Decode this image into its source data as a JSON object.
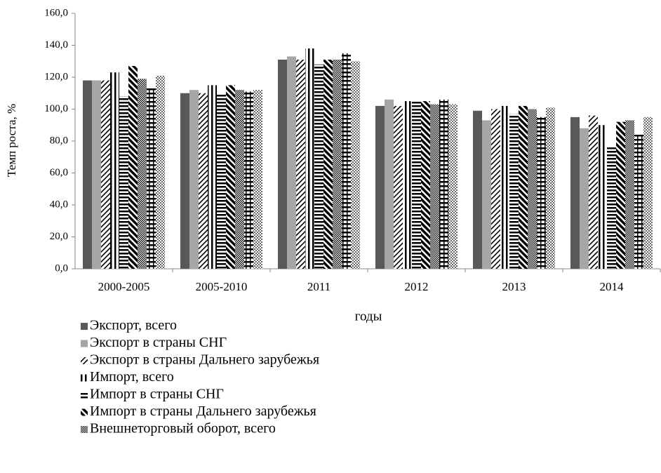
{
  "chart_data": {
    "type": "bar",
    "ylabel": "Темп роста, %",
    "xlabel": "годы",
    "categories": [
      "2000-2005",
      "2005-2010",
      "2011",
      "2012",
      "2013",
      "2014"
    ],
    "ylim": [
      0,
      160
    ],
    "yticks": [
      {
        "value": 0,
        "label": "0,0"
      },
      {
        "value": 20,
        "label": "20,0"
      },
      {
        "value": 40,
        "label": "40,0"
      },
      {
        "value": 60,
        "label": "60,0"
      },
      {
        "value": 80,
        "label": "80,0"
      },
      {
        "value": 100,
        "label": "100,0"
      },
      {
        "value": 120,
        "label": "120,0"
      },
      {
        "value": 140,
        "label": "140,0"
      },
      {
        "value": 160,
        "label": "160,0"
      }
    ],
    "grid": false,
    "series": [
      {
        "name": "Экспорт, всего",
        "color": "#595959",
        "pattern": "solid",
        "values": [
          118,
          110,
          131,
          102,
          99,
          95
        ]
      },
      {
        "name": "Экспорт в страны СНГ",
        "color": "#a6a6a6",
        "pattern": "solid",
        "values": [
          118,
          112,
          133,
          106,
          93,
          88
        ]
      },
      {
        "name": "Экспорт в страны Дальнего зарубежья",
        "color": "#000000",
        "pattern": "diagonal",
        "values": [
          118,
          110,
          131,
          102,
          100,
          96
        ]
      },
      {
        "name": "Импорт, всего",
        "color": "#000000",
        "pattern": "vertical",
        "values": [
          123,
          115,
          138,
          105,
          102,
          90
        ]
      },
      {
        "name": "Импорт в страны СНГ",
        "color": "#000000",
        "pattern": "horizontal",
        "values": [
          108,
          109,
          128,
          105,
          97,
          76
        ]
      },
      {
        "name": "Импорт в страны Дальнего зарубежья",
        "color": "#000000",
        "pattern": "thick-diagonal",
        "values": [
          127,
          115,
          131,
          105,
          102,
          92
        ]
      },
      {
        "name": "Внешнеторговый оборот, всего",
        "color": "#000000",
        "pattern": "checker",
        "values": [
          119,
          112,
          131,
          103,
          100,
          93
        ]
      },
      {
        "color": "#000000",
        "pattern": "cross",
        "values": [
          113,
          111,
          135,
          106,
          95,
          84
        ]
      },
      {
        "color": "#000000",
        "pattern": "dots",
        "values": [
          121,
          112,
          130,
          103,
          101,
          95
        ]
      }
    ]
  }
}
